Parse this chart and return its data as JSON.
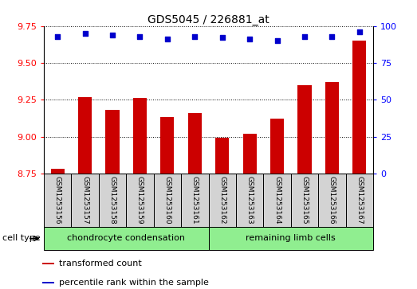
{
  "title": "GDS5045 / 226881_at",
  "samples": [
    "GSM1253156",
    "GSM1253157",
    "GSM1253158",
    "GSM1253159",
    "GSM1253160",
    "GSM1253161",
    "GSM1253162",
    "GSM1253163",
    "GSM1253164",
    "GSM1253165",
    "GSM1253166",
    "GSM1253167"
  ],
  "transformed_count": [
    8.78,
    9.27,
    9.18,
    9.26,
    9.13,
    9.16,
    8.99,
    9.02,
    9.12,
    9.35,
    9.37,
    9.65
  ],
  "percentile_rank": [
    93,
    95,
    94,
    93,
    91,
    93,
    92,
    91,
    90,
    93,
    93,
    96
  ],
  "ylim_left": [
    8.75,
    9.75
  ],
  "ylim_right": [
    0,
    100
  ],
  "yticks_left": [
    8.75,
    9.0,
    9.25,
    9.5,
    9.75
  ],
  "yticks_right": [
    0,
    25,
    50,
    75,
    100
  ],
  "bar_color": "#cc0000",
  "dot_color": "#0000cc",
  "group1_label": "chondrocyte condensation",
  "group2_label": "remaining limb cells",
  "group1_indices": [
    0,
    1,
    2,
    3,
    4,
    5
  ],
  "group2_indices": [
    6,
    7,
    8,
    9,
    10,
    11
  ],
  "cell_type_label": "cell type",
  "legend_bar_label": "transformed count",
  "legend_dot_label": "percentile rank within the sample",
  "bg_color_gray": "#d3d3d3",
  "bg_color_green": "#90ee90",
  "title_fontsize": 10,
  "tick_fontsize": 8,
  "label_fontsize": 8,
  "sample_fontsize": 6.5,
  "celltype_fontsize": 8
}
